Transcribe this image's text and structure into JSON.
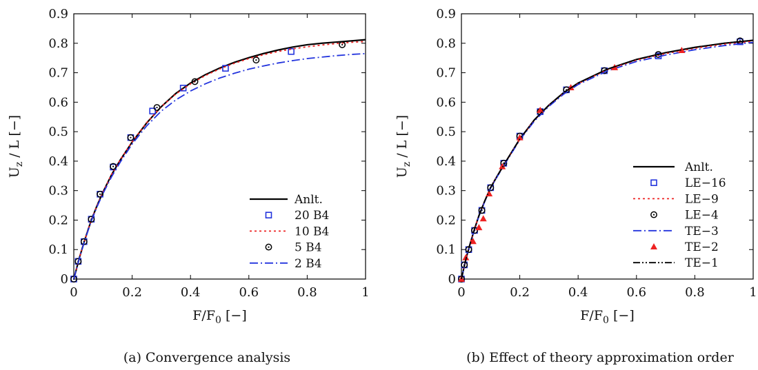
{
  "chart_data": [
    {
      "type": "line",
      "caption": "(a) Convergence analysis",
      "xlabel": "F/F0 [−]",
      "xlabel_main": "F/F",
      "xlabel_sub": "0",
      "xlabel_tail": " [−]",
      "ylabel": "Uz / L [−]",
      "ylabel_main": "U",
      "ylabel_sub": "z",
      "ylabel_tail": " / L [−]",
      "xlim": [
        0,
        1
      ],
      "ylim": [
        0,
        0.9
      ],
      "xticks": [
        "0",
        "0.2",
        "0.4",
        "0.6",
        "0.8",
        "1"
      ],
      "yticks": [
        "0",
        "0.1",
        "0.2",
        "0.3",
        "0.4",
        "0.5",
        "0.6",
        "0.7",
        "0.8",
        "0.9"
      ],
      "grid": false,
      "legend_position": "bottom-right",
      "series": [
        {
          "name": "Anlt.",
          "style": "solid",
          "color": "#000000",
          "x": [
            0,
            0.02,
            0.04,
            0.06,
            0.08,
            0.1,
            0.13,
            0.16,
            0.2,
            0.25,
            0.3,
            0.35,
            0.4,
            0.45,
            0.5,
            0.55,
            0.6,
            0.65,
            0.7,
            0.75,
            0.8,
            0.85,
            0.9,
            0.95,
            1.0
          ],
          "y": [
            0,
            0.075,
            0.14,
            0.2,
            0.25,
            0.295,
            0.355,
            0.405,
            0.465,
            0.53,
            0.585,
            0.63,
            0.665,
            0.693,
            0.716,
            0.735,
            0.751,
            0.765,
            0.777,
            0.787,
            0.795,
            0.8,
            0.804,
            0.808,
            0.812
          ]
        },
        {
          "name": "20 B4",
          "style": "square",
          "color": "#2233dd",
          "x": [
            0,
            0.015,
            0.035,
            0.06,
            0.09,
            0.135,
            0.195,
            0.27,
            0.375,
            0.52,
            0.745
          ],
          "y": [
            0,
            0.06,
            0.127,
            0.203,
            0.288,
            0.38,
            0.48,
            0.57,
            0.648,
            0.715,
            0.772
          ]
        },
        {
          "name": "10 B4",
          "style": "dotted",
          "color": "#ee2222",
          "x": [
            0,
            0.02,
            0.04,
            0.06,
            0.08,
            0.1,
            0.13,
            0.16,
            0.2,
            0.25,
            0.3,
            0.35,
            0.4,
            0.45,
            0.5,
            0.55,
            0.6,
            0.65,
            0.7,
            0.75,
            0.8,
            0.85,
            0.9,
            0.95,
            1.0
          ],
          "y": [
            0,
            0.075,
            0.14,
            0.2,
            0.25,
            0.295,
            0.356,
            0.406,
            0.466,
            0.531,
            0.585,
            0.628,
            0.662,
            0.69,
            0.713,
            0.732,
            0.748,
            0.761,
            0.772,
            0.781,
            0.788,
            0.794,
            0.799,
            0.803,
            0.806
          ]
        },
        {
          "name": "5 B4",
          "style": "circle",
          "color": "#000000",
          "x": [
            0,
            0.015,
            0.035,
            0.06,
            0.09,
            0.135,
            0.195,
            0.285,
            0.415,
            0.625,
            0.92
          ],
          "y": [
            0,
            0.06,
            0.127,
            0.203,
            0.288,
            0.382,
            0.48,
            0.582,
            0.67,
            0.743,
            0.795
          ]
        },
        {
          "name": "2 B4",
          "style": "dashdot",
          "color": "#2233dd",
          "x": [
            0,
            0.02,
            0.04,
            0.06,
            0.08,
            0.1,
            0.13,
            0.16,
            0.2,
            0.25,
            0.3,
            0.35,
            0.4,
            0.45,
            0.5,
            0.55,
            0.6,
            0.65,
            0.7,
            0.75,
            0.8,
            0.85,
            0.9,
            0.95,
            1.0
          ],
          "y": [
            0,
            0.074,
            0.138,
            0.197,
            0.246,
            0.29,
            0.348,
            0.398,
            0.458,
            0.52,
            0.57,
            0.608,
            0.638,
            0.662,
            0.682,
            0.698,
            0.712,
            0.723,
            0.733,
            0.741,
            0.748,
            0.753,
            0.758,
            0.762,
            0.765
          ]
        }
      ]
    },
    {
      "type": "line",
      "caption": "(b) Effect of theory approximation order",
      "xlabel": "F/F0 [−]",
      "xlabel_main": "F/F",
      "xlabel_sub": "0",
      "xlabel_tail": " [−]",
      "ylabel": "Uz / L [−]",
      "ylabel_main": "U",
      "ylabel_sub": "z",
      "ylabel_tail": " / L [−]",
      "xlim": [
        0,
        1
      ],
      "ylim": [
        0,
        0.9
      ],
      "xticks": [
        "0",
        "0.2",
        "0.4",
        "0.6",
        "0.8",
        "1"
      ],
      "yticks": [
        "0",
        "0.1",
        "0.2",
        "0.3",
        "0.4",
        "0.5",
        "0.6",
        "0.7",
        "0.8",
        "0.9"
      ],
      "grid": false,
      "legend_position": "bottom-right",
      "series": [
        {
          "name": "Anlt.",
          "style": "solid",
          "color": "#000000",
          "x": [
            0,
            0.01,
            0.02,
            0.03,
            0.045,
            0.06,
            0.08,
            0.1,
            0.12,
            0.15,
            0.2,
            0.25,
            0.3,
            0.35,
            0.4,
            0.5,
            0.6,
            0.7,
            0.8,
            0.9,
            1.0
          ],
          "y": [
            0,
            0.045,
            0.085,
            0.12,
            0.17,
            0.215,
            0.265,
            0.31,
            0.345,
            0.395,
            0.475,
            0.54,
            0.59,
            0.632,
            0.665,
            0.712,
            0.745,
            0.768,
            0.786,
            0.8,
            0.81
          ]
        },
        {
          "name": "LE−16",
          "style": "square",
          "color": "#2233dd",
          "x": [
            0,
            0.01,
            0.025,
            0.045,
            0.07,
            0.1,
            0.145,
            0.2,
            0.27,
            0.36,
            0.49,
            0.675,
            0.955
          ],
          "y": [
            0,
            0.048,
            0.1,
            0.165,
            0.233,
            0.31,
            0.393,
            0.485,
            0.568,
            0.642,
            0.707,
            0.757,
            0.805
          ]
        },
        {
          "name": "LE−9",
          "style": "dotted",
          "color": "#ee2222",
          "x": [
            0,
            0.01,
            0.02,
            0.03,
            0.045,
            0.06,
            0.08,
            0.1,
            0.12,
            0.15,
            0.2,
            0.25,
            0.3,
            0.35,
            0.4,
            0.5,
            0.6,
            0.7,
            0.8,
            0.9,
            1.0
          ],
          "y": [
            0,
            0.045,
            0.085,
            0.12,
            0.17,
            0.215,
            0.265,
            0.31,
            0.345,
            0.395,
            0.474,
            0.539,
            0.589,
            0.63,
            0.663,
            0.71,
            0.743,
            0.765,
            0.783,
            0.797,
            0.807
          ]
        },
        {
          "name": "LE−4",
          "style": "circle",
          "color": "#000000",
          "x": [
            0,
            0.01,
            0.025,
            0.045,
            0.07,
            0.1,
            0.145,
            0.2,
            0.27,
            0.36,
            0.49,
            0.675,
            0.955
          ],
          "y": [
            0,
            0.048,
            0.1,
            0.165,
            0.233,
            0.31,
            0.393,
            0.485,
            0.568,
            0.642,
            0.707,
            0.762,
            0.808
          ]
        },
        {
          "name": "TE−3",
          "style": "dashdot",
          "color": "#2233dd",
          "x": [
            0,
            0.01,
            0.02,
            0.03,
            0.045,
            0.06,
            0.08,
            0.1,
            0.12,
            0.15,
            0.2,
            0.25,
            0.3,
            0.35,
            0.4,
            0.5,
            0.6,
            0.7,
            0.8,
            0.9,
            1.0
          ],
          "y": [
            0,
            0.044,
            0.084,
            0.119,
            0.168,
            0.213,
            0.263,
            0.308,
            0.343,
            0.392,
            0.472,
            0.536,
            0.586,
            0.627,
            0.66,
            0.706,
            0.738,
            0.76,
            0.778,
            0.792,
            0.803
          ]
        },
        {
          "name": "TE−2",
          "style": "triangle",
          "color": "#ee2222",
          "x": [
            0,
            0.015,
            0.04,
            0.06,
            0.075,
            0.095,
            0.14,
            0.2,
            0.27,
            0.375,
            0.525,
            0.755
          ],
          "y": [
            0,
            0.073,
            0.128,
            0.175,
            0.205,
            0.29,
            0.382,
            0.48,
            0.573,
            0.65,
            0.718,
            0.776
          ]
        },
        {
          "name": "TE−1",
          "style": "dashdotdot",
          "color": "#000000",
          "x": [
            0,
            0.01,
            0.02,
            0.03,
            0.045,
            0.06,
            0.08,
            0.1,
            0.12,
            0.15,
            0.2,
            0.25,
            0.3,
            0.35,
            0.4,
            0.5,
            0.6,
            0.7,
            0.8,
            0.9,
            1.0
          ],
          "y": [
            0,
            0.045,
            0.085,
            0.12,
            0.17,
            0.215,
            0.265,
            0.31,
            0.345,
            0.395,
            0.475,
            0.54,
            0.59,
            0.632,
            0.665,
            0.712,
            0.745,
            0.768,
            0.786,
            0.8,
            0.81
          ]
        }
      ]
    }
  ]
}
